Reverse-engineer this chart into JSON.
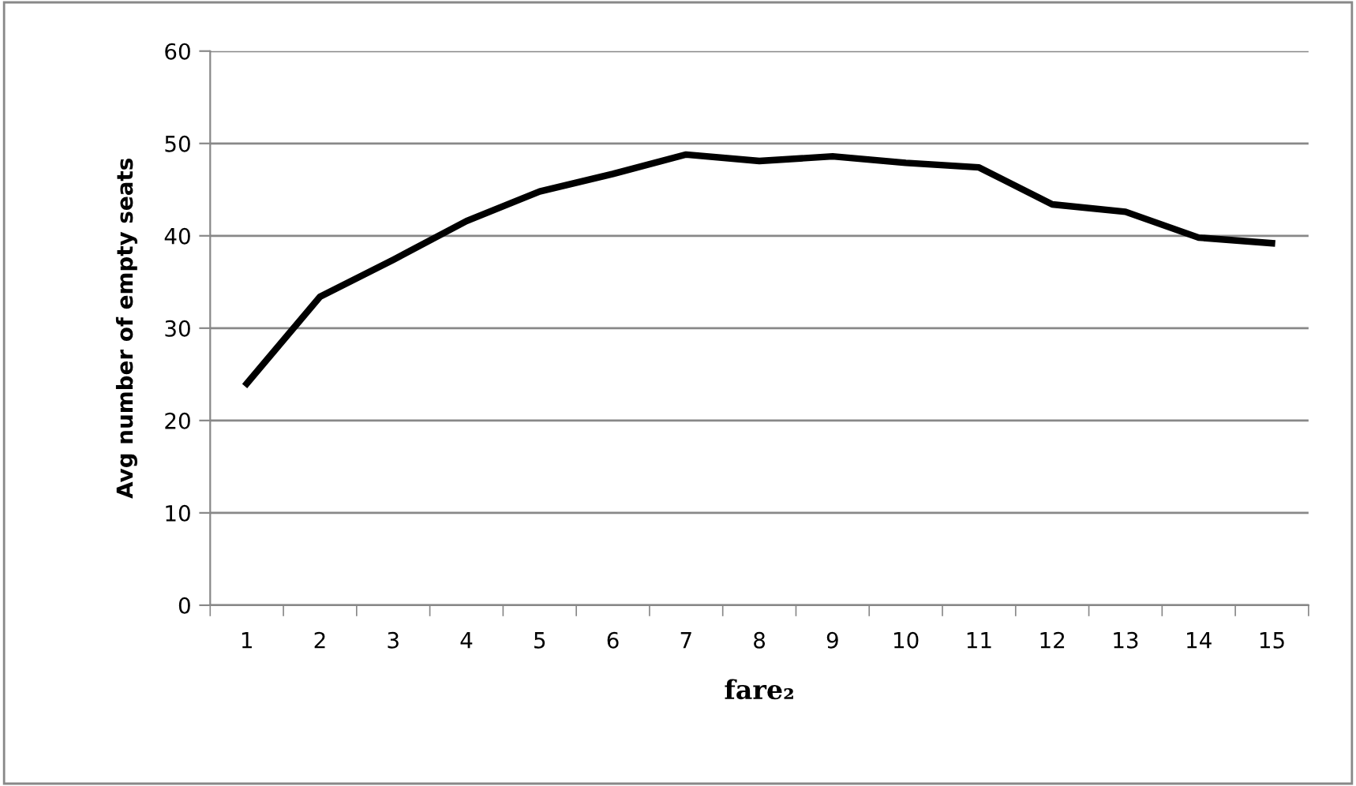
{
  "chart_data": {
    "type": "line",
    "xlabel": "fare₂",
    "ylabel": "Avg number of empty seats",
    "categories": [
      "1",
      "2",
      "3",
      "4",
      "5",
      "6",
      "7",
      "8",
      "9",
      "10",
      "11",
      "12",
      "13",
      "14",
      "15"
    ],
    "series": [
      {
        "color": "#000000",
        "values": [
          24.0,
          33.4,
          37.4,
          41.6,
          44.8,
          46.7,
          48.8,
          48.1,
          48.6,
          47.9,
          47.4,
          43.4,
          42.6,
          39.8,
          39.2
        ]
      }
    ],
    "ylim": [
      0,
      60
    ],
    "yticks": [
      0,
      10,
      20,
      30,
      40,
      50,
      60
    ],
    "grid": "y",
    "marker": "none",
    "line_style": "solid",
    "legend": false
  }
}
